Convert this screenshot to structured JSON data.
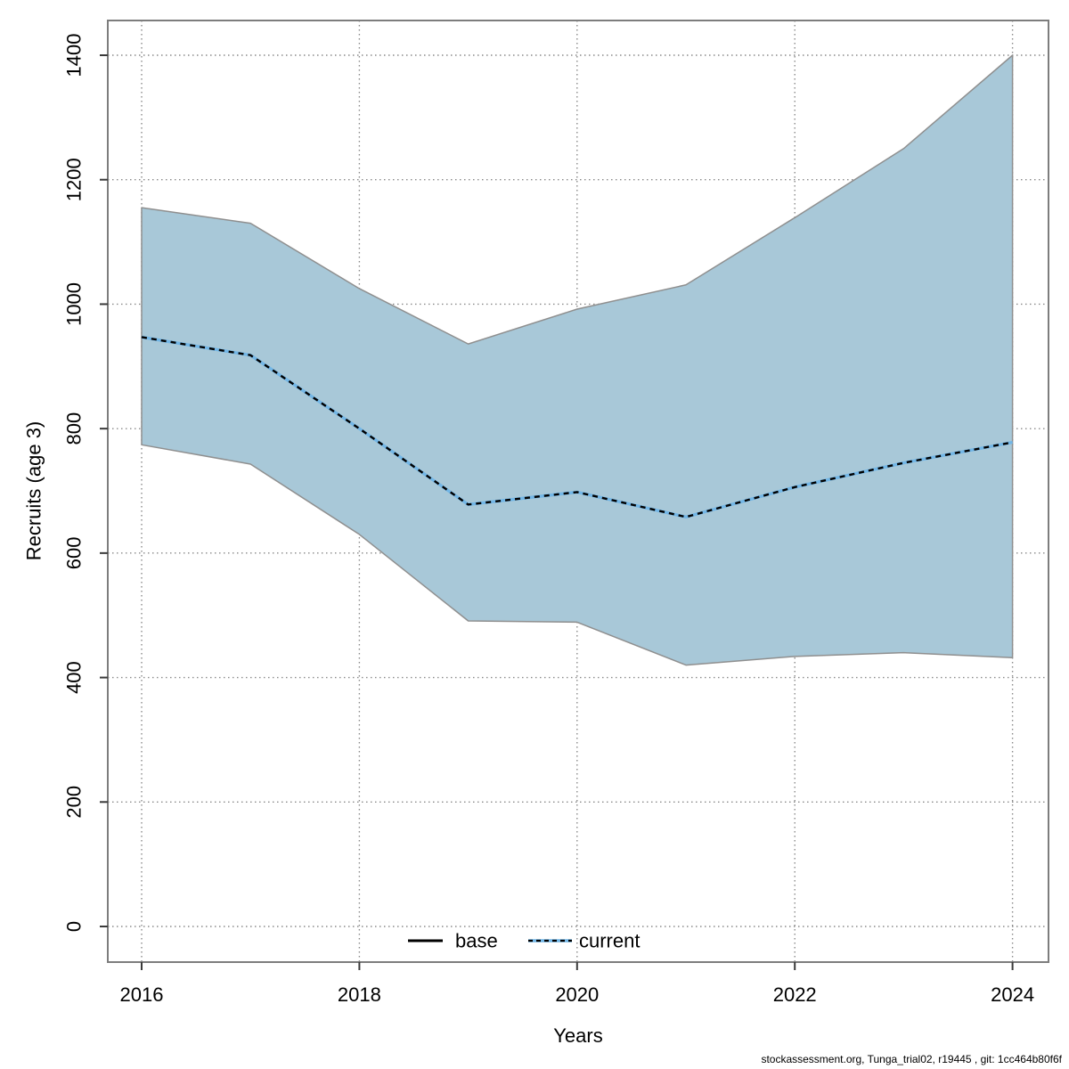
{
  "figure": {
    "description": "Stock assessment recruitment forecast plot with confidence band"
  },
  "chart_data": {
    "type": "area",
    "title": "",
    "xlabel": "Years",
    "ylabel": "Recruits (age 3)",
    "grid": true,
    "x": [
      2016,
      2017,
      2018,
      2019,
      2020,
      2021,
      2022,
      2023,
      2024
    ],
    "series": [
      {
        "name": "current median",
        "role": "median",
        "line": "dotted",
        "values": [
          947,
          918,
          800,
          678,
          698,
          658,
          706,
          745,
          778
        ]
      },
      {
        "name": "confidence band upper",
        "role": "band-upper",
        "values": [
          1155,
          1130,
          1025,
          936,
          992,
          1031,
          1139,
          1250,
          1400
        ]
      },
      {
        "name": "confidence band lower",
        "role": "band-lower",
        "values": [
          774,
          743,
          630,
          491,
          489,
          420,
          434,
          440,
          432
        ]
      }
    ],
    "xticks": [
      "2016",
      "2018",
      "2020",
      "2022",
      "2024"
    ],
    "xtick_values": [
      2016,
      2018,
      2020,
      2022,
      2024
    ],
    "yticks": [
      "0",
      "200",
      "400",
      "600",
      "800",
      "1000",
      "1200",
      "1400"
    ],
    "ytick_values": [
      0,
      200,
      400,
      600,
      800,
      1000,
      1200,
      1400
    ],
    "xlim": [
      2015.7,
      2024.35
    ],
    "ylim": [
      -57,
      1456
    ],
    "legend_position": "bottom-center",
    "legend": [
      {
        "label": "base",
        "line": "solid",
        "color": "#000000"
      },
      {
        "label": "current",
        "line": "dotted",
        "color": "#72b6e6"
      }
    ],
    "colors": {
      "band_fill": "#a8c8d8",
      "band_edge": "#8f8f8f",
      "median_solid": "#72b6e6",
      "median_dash": "#000000",
      "base_line": "#000000",
      "grid": "#8a8a8a",
      "box": "#7d7d7d",
      "tick": "#3a3a3a",
      "text": "#000000"
    }
  },
  "footer": {
    "text": "stockassessment.org, Tunga_trial02, r19445 , git: 1cc464b80f6f"
  }
}
